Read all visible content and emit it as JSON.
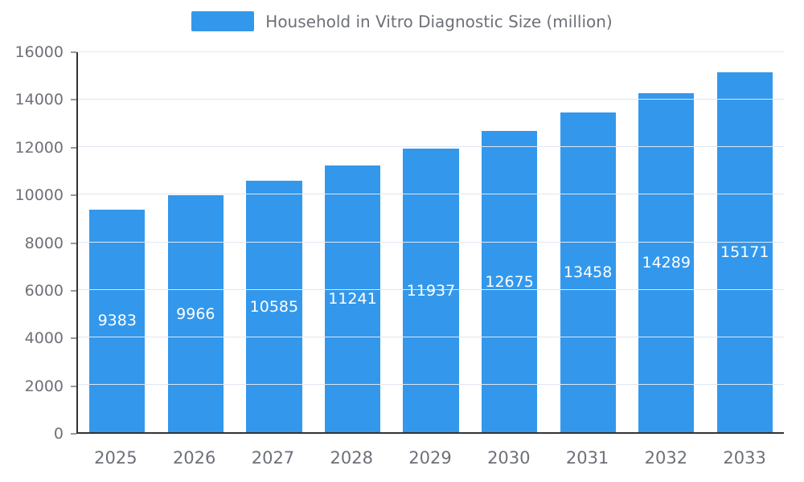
{
  "chart_data": {
    "type": "bar",
    "title": "Household in Vitro Diagnostic Size (million)",
    "categories": [
      "2025",
      "2026",
      "2027",
      "2028",
      "2029",
      "2030",
      "2031",
      "2032",
      "2033"
    ],
    "values": [
      9383,
      9966,
      10585,
      11241,
      11937,
      12675,
      13458,
      14289,
      15171
    ],
    "xlabel": "",
    "ylabel": "",
    "ylim": [
      0,
      16000
    ],
    "yticks": [
      0,
      2000,
      4000,
      6000,
      8000,
      10000,
      12000,
      14000,
      16000
    ],
    "grid": true,
    "legend_position": "top",
    "bar_color": "#3398EC",
    "bar_label_color": "#FFFFFF",
    "axis_text_color": "#6E7079",
    "grid_color": "#E0E6F1",
    "axis_line_color": "#333333"
  }
}
